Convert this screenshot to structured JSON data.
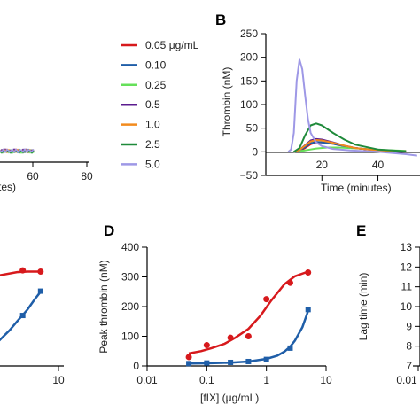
{
  "colors": {
    "c005": "#d7191c",
    "c010": "#1f5ea8",
    "c025": "#66e05a",
    "c05": "#5b1c8f",
    "c10": "#f28b1e",
    "c25": "#1f8a3a",
    "c50": "#9e98e6"
  },
  "panel_a_fragment": {
    "x_ticks": [
      "60",
      "80"
    ],
    "x_title_fragment": "tes)"
  },
  "legend": {
    "entries": [
      {
        "label": "0.05 μg/mL",
        "color": "#d7191c"
      },
      {
        "label": "0.10",
        "color": "#1f5ea8"
      },
      {
        "label": "0.25",
        "color": "#66e05a"
      },
      {
        "label": "0.5",
        "color": "#5b1c8f"
      },
      {
        "label": "1.0",
        "color": "#f28b1e"
      },
      {
        "label": "2.5",
        "color": "#1f8a3a"
      },
      {
        "label": "5.0",
        "color": "#9e98e6"
      }
    ]
  },
  "panel_b": {
    "letter": "B",
    "ylabel": "Thrombin (nM)",
    "xlabel": "Time (minutes)",
    "y_ticks": [
      "250",
      "200",
      "150",
      "100",
      "50",
      "0",
      "−50"
    ],
    "x_ticks": [
      "20",
      "40"
    ]
  },
  "panel_c_fragment": {
    "x_ticks": [
      "10"
    ]
  },
  "panel_d": {
    "letter": "D",
    "ylabel": "Peak thrombin (nM)",
    "xlabel": "[fIX]  (μg/mL)",
    "y_ticks": [
      "400",
      "300",
      "200",
      "100",
      "0"
    ],
    "x_ticks": [
      "0.01",
      "0.1",
      "1",
      "10"
    ]
  },
  "panel_e": {
    "letter": "E",
    "ylabel": "Lag time (min)",
    "y_ticks": [
      "13",
      "12",
      "11",
      "10",
      "9",
      "8",
      "7"
    ],
    "x_ticks": [
      "0.01"
    ]
  },
  "chart_data": [
    {
      "type": "line",
      "panel": "B",
      "xlabel": "Time (minutes)",
      "ylabel": "Thrombin (nM)",
      "xlim": [
        0,
        55
      ],
      "ylim": [
        -50,
        250
      ],
      "series": [
        {
          "name": "0.05 μg/mL",
          "color": "#d7191c",
          "x": [
            10,
            12,
            14,
            16,
            18,
            20,
            24,
            28,
            32,
            40,
            50
          ],
          "y": [
            0,
            2,
            8,
            16,
            20,
            20,
            17,
            12,
            8,
            3,
            1
          ]
        },
        {
          "name": "0.10",
          "color": "#1f5ea8",
          "x": [
            10,
            12,
            14,
            16,
            18,
            20,
            24,
            28,
            32,
            40,
            50
          ],
          "y": [
            0,
            3,
            10,
            18,
            21,
            20,
            17,
            12,
            8,
            3,
            1
          ]
        },
        {
          "name": "0.25",
          "color": "#66e05a",
          "x": [
            10,
            14,
            18,
            22,
            26,
            30,
            36,
            42,
            50
          ],
          "y": [
            0,
            3,
            7,
            9,
            9,
            8,
            6,
            4,
            2
          ]
        },
        {
          "name": "0.5",
          "color": "#5b1c8f",
          "x": [
            10,
            12,
            14,
            16,
            18,
            20,
            24,
            28,
            32,
            40,
            50
          ],
          "y": [
            0,
            4,
            14,
            24,
            27,
            26,
            20,
            13,
            8,
            3,
            1
          ]
        },
        {
          "name": "1.0",
          "color": "#f28b1e",
          "x": [
            10,
            12,
            14,
            16,
            18,
            20,
            24,
            28,
            32,
            40,
            50
          ],
          "y": [
            0,
            4,
            13,
            22,
            25,
            24,
            19,
            13,
            8,
            3,
            1
          ]
        },
        {
          "name": "2.5",
          "color": "#1f8a3a",
          "x": [
            10,
            12,
            14,
            16,
            18,
            20,
            24,
            28,
            32,
            40,
            50
          ],
          "y": [
            0,
            8,
            35,
            56,
            60,
            56,
            40,
            26,
            15,
            5,
            1
          ]
        },
        {
          "name": "5.0",
          "color": "#9e98e6",
          "x": [
            8,
            9,
            10,
            11,
            12,
            13,
            14,
            15,
            16,
            18,
            20,
            24,
            30,
            40,
            50,
            54
          ],
          "y": [
            0,
            5,
            40,
            150,
            195,
            175,
            120,
            70,
            40,
            20,
            12,
            6,
            3,
            0,
            -5,
            -8
          ]
        }
      ]
    },
    {
      "type": "scatter",
      "panel": "D",
      "xlabel": "[fIX]  (μg/mL)",
      "ylabel": "Peak thrombin (nM)",
      "xscale": "log",
      "xlim": [
        0.01,
        10
      ],
      "ylim": [
        0,
        400
      ],
      "series": [
        {
          "color": "#d7191c",
          "marker": "circle",
          "x": [
            0.05,
            0.1,
            0.25,
            0.5,
            1.0,
            2.5,
            5.0
          ],
          "y": [
            30,
            70,
            95,
            100,
            225,
            280,
            315
          ],
          "fit_x": [
            0.05,
            0.08,
            0.12,
            0.2,
            0.3,
            0.5,
            0.8,
            1.2,
            2,
            3,
            5
          ],
          "fit_y": [
            42,
            50,
            60,
            75,
            95,
            125,
            170,
            220,
            275,
            302,
            318
          ]
        },
        {
          "color": "#1f5ea8",
          "marker": "square",
          "x": [
            0.05,
            0.1,
            0.25,
            0.5,
            1.0,
            2.5,
            5.0
          ],
          "y": [
            8,
            10,
            12,
            15,
            22,
            60,
            190
          ],
          "fit_x": [
            0.05,
            0.1,
            0.25,
            0.5,
            1,
            1.5,
            2,
            2.5,
            3,
            4,
            5
          ],
          "fit_y": [
            8,
            9,
            11,
            15,
            24,
            34,
            48,
            65,
            85,
            130,
            185
          ]
        }
      ]
    },
    {
      "type": "scatter",
      "panel": "C (partial)",
      "series": [
        {
          "color": "#d7191c",
          "marker": "circle",
          "x": [
            2.5,
            5.0
          ],
          "y": [
            322,
            318
          ],
          "fit_x": [
            0.5,
            1,
            2,
            3,
            5
          ],
          "fit_y": [
            285,
            305,
            316,
            318,
            318
          ]
        },
        {
          "color": "#1f5ea8",
          "marker": "square",
          "x": [
            2.5,
            5.0
          ],
          "y": [
            170,
            252
          ],
          "fit_x": [
            1,
            1.5,
            2,
            3,
            4,
            5
          ],
          "fit_y": [
            85,
            120,
            150,
            190,
            225,
            250
          ]
        }
      ]
    }
  ]
}
